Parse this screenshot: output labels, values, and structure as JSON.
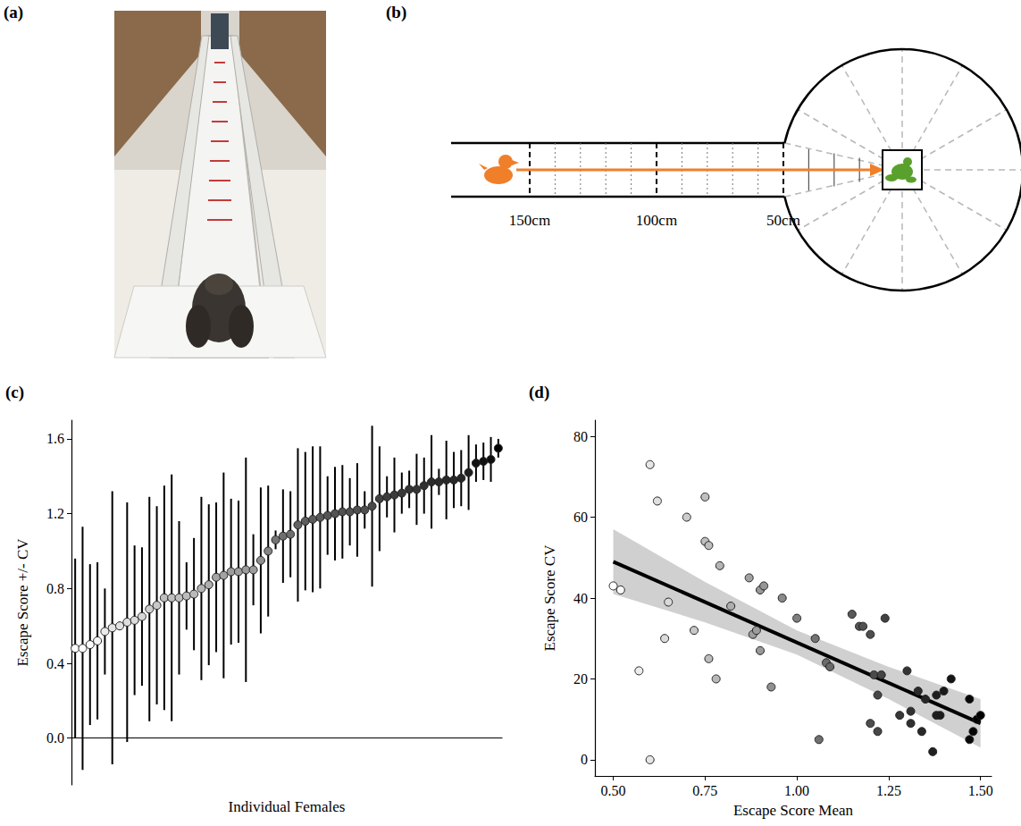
{
  "photo": {
    "label": "(a)"
  },
  "diagram": {
    "label": "(b)",
    "distance_labels": [
      {
        "value": 150,
        "label": "150cm"
      },
      {
        "value": 100,
        "label": "100cm"
      },
      {
        "value": 50,
        "label": "50cm"
      }
    ],
    "distance_ticks": [
      10,
      20,
      30,
      40,
      50,
      60,
      70,
      80,
      90,
      100,
      110,
      120,
      130,
      140,
      150
    ]
  },
  "chart_data": [
    {
      "type": "scatter",
      "title": "(c)",
      "xlabel": "Individual Females",
      "ylabel": "Escape Score +/- CV",
      "values": [
        0.48,
        0.48,
        0.5,
        0.52,
        0.57,
        0.59,
        0.6,
        0.62,
        0.63,
        0.65,
        0.69,
        0.71,
        0.75,
        0.75,
        0.75,
        0.76,
        0.77,
        0.8,
        0.82,
        0.86,
        0.87,
        0.89,
        0.89,
        0.9,
        0.9,
        0.95,
        1.0,
        1.06,
        1.08,
        1.09,
        1.14,
        1.16,
        1.17,
        1.18,
        1.19,
        1.2,
        1.21,
        1.21,
        1.22,
        1.22,
        1.24,
        1.28,
        1.29,
        1.3,
        1.31,
        1.33,
        1.33,
        1.35,
        1.37,
        1.37,
        1.38,
        1.38,
        1.39,
        1.42,
        1.47,
        1.48,
        1.49,
        1.55
      ],
      "errors": [
        0.48,
        0.65,
        0.43,
        0.42,
        0.23,
        0.73,
        0.0,
        0.64,
        0.4,
        0.37,
        0.6,
        0.53,
        0.6,
        0.66,
        0.41,
        0.18,
        0.3,
        0.49,
        0.43,
        0.4,
        0.55,
        0.39,
        0.38,
        0.6,
        0.19,
        0.39,
        0.35,
        0.05,
        0.25,
        0.23,
        0.41,
        0.37,
        0.39,
        0.38,
        0.21,
        0.25,
        0.25,
        0.18,
        0.25,
        0.1,
        0.43,
        0.28,
        0.11,
        0.2,
        0.11,
        0.1,
        0.19,
        0.15,
        0.25,
        0.07,
        0.21,
        0.15,
        0.15,
        0.2,
        0.1,
        0.1,
        0.12,
        0.05
      ],
      "ylim": [
        -0.25,
        1.7
      ],
      "yticks": [
        {
          "value": 0,
          "label": "0.0"
        },
        0.4,
        0.8,
        1.2,
        1.6
      ],
      "tick_labels": "y",
      "grid": false
    },
    {
      "type": "scatter",
      "title": "(d)",
      "xlabel": "Escape Score Mean",
      "ylabel": "Escape Score CV",
      "x": [
        0.5,
        0.52,
        0.57,
        0.6,
        0.6,
        0.62,
        0.64,
        0.65,
        0.7,
        0.72,
        0.75,
        0.75,
        0.76,
        0.76,
        0.78,
        0.79,
        0.82,
        0.87,
        0.88,
        0.89,
        0.9,
        0.9,
        0.91,
        0.93,
        0.96,
        1.0,
        1.05,
        1.06,
        1.08,
        1.09,
        1.15,
        1.17,
        1.18,
        1.2,
        1.2,
        1.21,
        1.22,
        1.22,
        1.23,
        1.24,
        1.28,
        1.3,
        1.31,
        1.31,
        1.33,
        1.34,
        1.35,
        1.37,
        1.38,
        1.38,
        1.39,
        1.4,
        1.42,
        1.47,
        1.47,
        1.48,
        1.49,
        1.5
      ],
      "values": [
        43,
        42,
        22,
        0,
        73,
        64,
        30,
        39,
        60,
        32,
        65,
        54,
        53,
        25,
        20,
        48,
        38,
        45,
        31,
        32,
        42,
        27,
        43,
        18,
        40,
        35,
        30,
        5,
        24,
        23,
        36,
        33,
        33,
        31,
        9,
        21,
        7,
        16,
        21,
        35,
        11,
        22,
        9,
        12,
        17,
        7,
        15,
        2,
        11,
        16,
        11,
        17,
        20,
        5,
        15,
        7,
        10,
        11
      ],
      "xlim": [
        0.45,
        1.53
      ],
      "xticks": [
        {
          "value": 0.5,
          "label": "0.50"
        },
        {
          "value": 0.75,
          "label": "0.75"
        },
        {
          "value": 1,
          "label": "1.00"
        },
        {
          "value": 1.25,
          "label": "1.25"
        },
        {
          "value": 1.5,
          "label": "1.50"
        }
      ],
      "ylim": [
        -4,
        84
      ],
      "yticks": [
        0,
        20,
        40,
        60,
        80
      ],
      "fit_line": {
        "x": [
          0.5,
          1.5
        ],
        "values": [
          49,
          9
        ]
      },
      "ci_band": {
        "x": [
          0.5,
          0.75,
          1.0,
          1.25,
          1.5
        ],
        "lower": [
          41,
          34,
          26,
          15,
          3
        ],
        "upper": [
          57,
          44,
          32,
          23,
          15
        ]
      },
      "grid": false
    }
  ]
}
